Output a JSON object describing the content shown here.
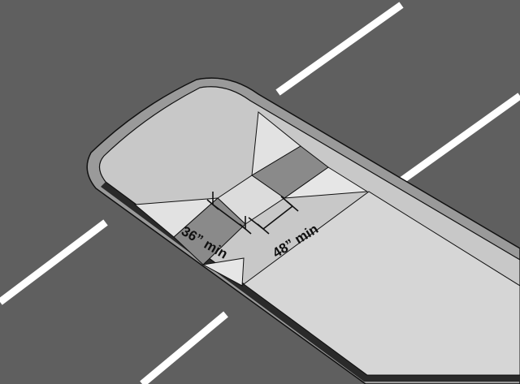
{
  "dimensions": {
    "width_label": "36” min",
    "length_label": "48” min"
  },
  "colors": {
    "pavement": "#5f5f5f",
    "curb_edge": "#9a9a9a",
    "island": "#c8c8c8",
    "walkway": "#d8d8d8",
    "ramp": "#e2e2e2",
    "landing": "#8a8a8a",
    "stripe": "#ffffff",
    "line": "#111111"
  }
}
